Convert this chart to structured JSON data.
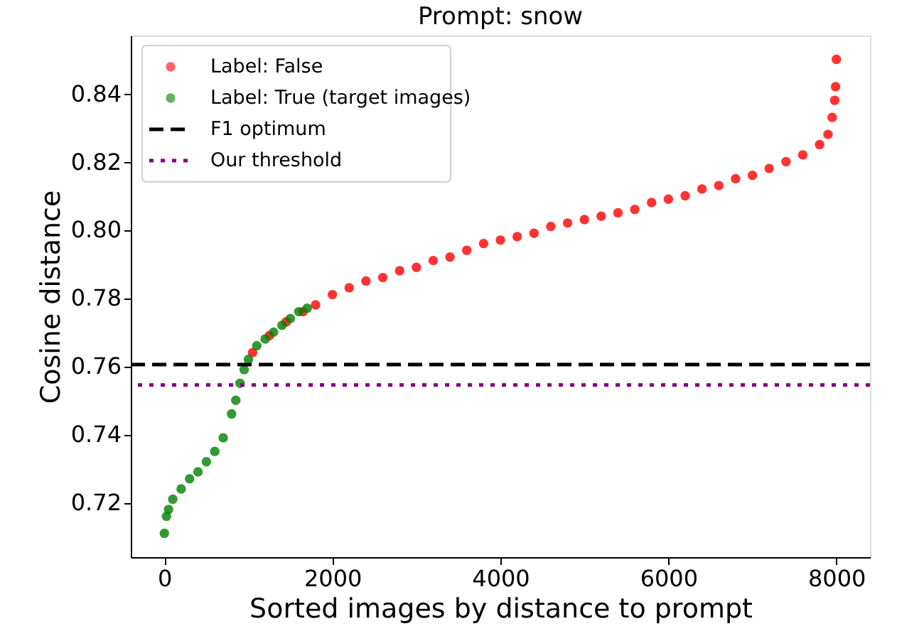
{
  "chart_data": {
    "type": "scatter",
    "title": "Prompt: snow",
    "xlabel": "Sorted images by distance to prompt",
    "ylabel": "Cosine distance",
    "xlim": [
      -400,
      8400
    ],
    "ylim": [
      0.704,
      0.857
    ],
    "xticks": [
      0,
      2000,
      4000,
      6000,
      8000
    ],
    "yticks": [
      0.72,
      0.74,
      0.76,
      0.78,
      {
        "value": 0.8,
        "label": "0.80"
      },
      0.82,
      0.84
    ],
    "legend": "top left",
    "grid": false,
    "series": [
      {
        "name": "Label: False",
        "color": "#ff0000",
        "x": [
          1050,
          1250,
          1450,
          1650,
          1800,
          2000,
          2200,
          2400,
          2600,
          2800,
          3000,
          3200,
          3400,
          3600,
          3800,
          4000,
          4200,
          4400,
          4600,
          4800,
          5000,
          5200,
          5400,
          5600,
          5800,
          6000,
          6200,
          6400,
          6600,
          6800,
          7000,
          7200,
          7400,
          7600,
          7800,
          7900,
          7950,
          7980,
          7990,
          8000
        ],
        "values": [
          0.764,
          0.769,
          0.773,
          0.776,
          0.778,
          0.781,
          0.783,
          0.785,
          0.786,
          0.788,
          0.789,
          0.791,
          0.792,
          0.794,
          0.796,
          0.797,
          0.798,
          0.799,
          0.801,
          0.802,
          0.803,
          0.804,
          0.805,
          0.806,
          0.808,
          0.809,
          0.81,
          0.812,
          0.813,
          0.815,
          0.816,
          0.818,
          0.82,
          0.822,
          0.825,
          0.828,
          0.833,
          0.838,
          0.842,
          0.85
        ]
      },
      {
        "name": "Label: True (target images)",
        "color": "#008000",
        "x": [
          0,
          25,
          50,
          100,
          200,
          300,
          400,
          500,
          600,
          700,
          800,
          850,
          900,
          950,
          1000,
          1100,
          1200,
          1300,
          1400,
          1500,
          1600,
          1700
        ],
        "values": [
          0.711,
          0.716,
          0.718,
          0.721,
          0.724,
          0.727,
          0.729,
          0.732,
          0.735,
          0.739,
          0.746,
          0.75,
          0.755,
          0.759,
          0.762,
          0.766,
          0.768,
          0.77,
          0.772,
          0.774,
          0.776,
          0.777
        ]
      }
    ],
    "ref_lines": [
      {
        "axis": "y",
        "value": 0.7605,
        "label": "F1 optimum",
        "color": "#000000",
        "line_style": "dashed"
      },
      {
        "axis": "y",
        "value": 0.7545,
        "label": "Our threshold",
        "color": "#800080",
        "line_style": "dotted"
      }
    ]
  }
}
